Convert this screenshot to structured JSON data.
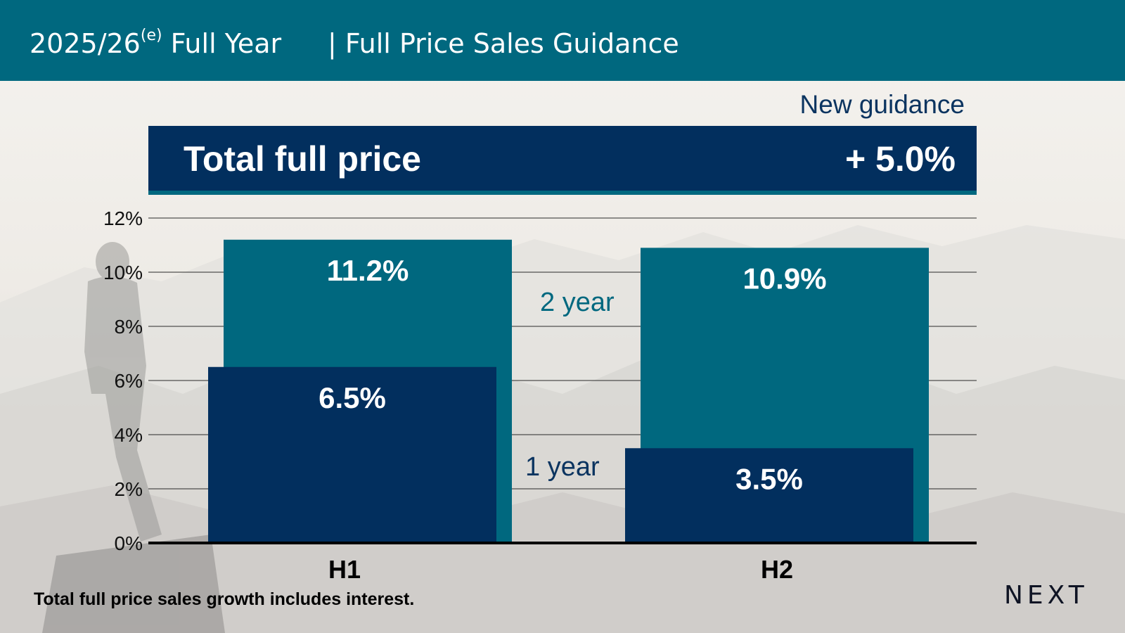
{
  "header": {
    "title": "2025/26",
    "title_sup": "(e)",
    "title_suffix": " Full Year",
    "subtitle": "| Full Price Sales Guidance"
  },
  "guidance_label": "New guidance",
  "banner": {
    "label": "Total full price",
    "value": "+ 5.0%"
  },
  "footnote": "Total full price sales growth includes interest.",
  "logo_text": "NEXT",
  "colors": {
    "teal": "#00687f",
    "navy": "#022f5e",
    "text_navy": "#0b3460"
  },
  "chart_data": {
    "type": "bar",
    "categories": [
      "H1",
      "H2"
    ],
    "series": [
      {
        "name": "2 year",
        "values": [
          11.2,
          10.9
        ],
        "labels": [
          "11.2%",
          "10.9%"
        ],
        "color": "#00687f"
      },
      {
        "name": "1 year",
        "values": [
          6.5,
          3.5
        ],
        "labels": [
          "6.5%",
          "3.5%"
        ],
        "color": "#022f5e"
      }
    ],
    "yticks": [
      "0%",
      "2%",
      "4%",
      "6%",
      "8%",
      "10%",
      "12%"
    ],
    "ylim": [
      0,
      12
    ],
    "grid": true
  }
}
